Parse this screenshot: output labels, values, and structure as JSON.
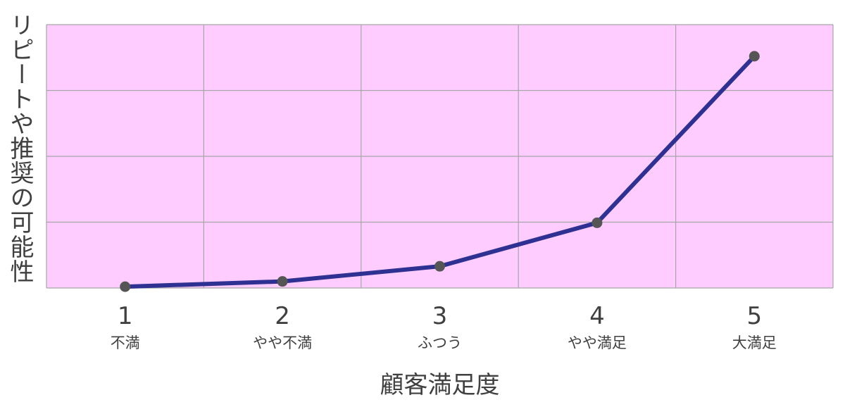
{
  "chart_data": {
    "type": "line",
    "title": "",
    "xlabel": "顧客満足度",
    "ylabel": "リピートや推奨の可能性",
    "categories": [
      {
        "num": "1",
        "label": "不満"
      },
      {
        "num": "2",
        "label": "やや不満"
      },
      {
        "num": "3",
        "label": "ふつう"
      },
      {
        "num": "4",
        "label": "やや満足"
      },
      {
        "num": "5",
        "label": "大満足"
      }
    ],
    "series": [
      {
        "values": [
          0.2,
          1.0,
          3.3,
          9.9,
          35.2
        ]
      }
    ],
    "ylim": [
      0,
      40
    ],
    "yticks": [
      0,
      10,
      20,
      30,
      40
    ],
    "grid": true,
    "y_tick_labels_shown": false,
    "legend": "none",
    "colors": {
      "plot_background": "#ffccff",
      "grid": "#a6a6a6",
      "line": "#2e3192",
      "marker": "#555555",
      "text": "#404040"
    }
  }
}
